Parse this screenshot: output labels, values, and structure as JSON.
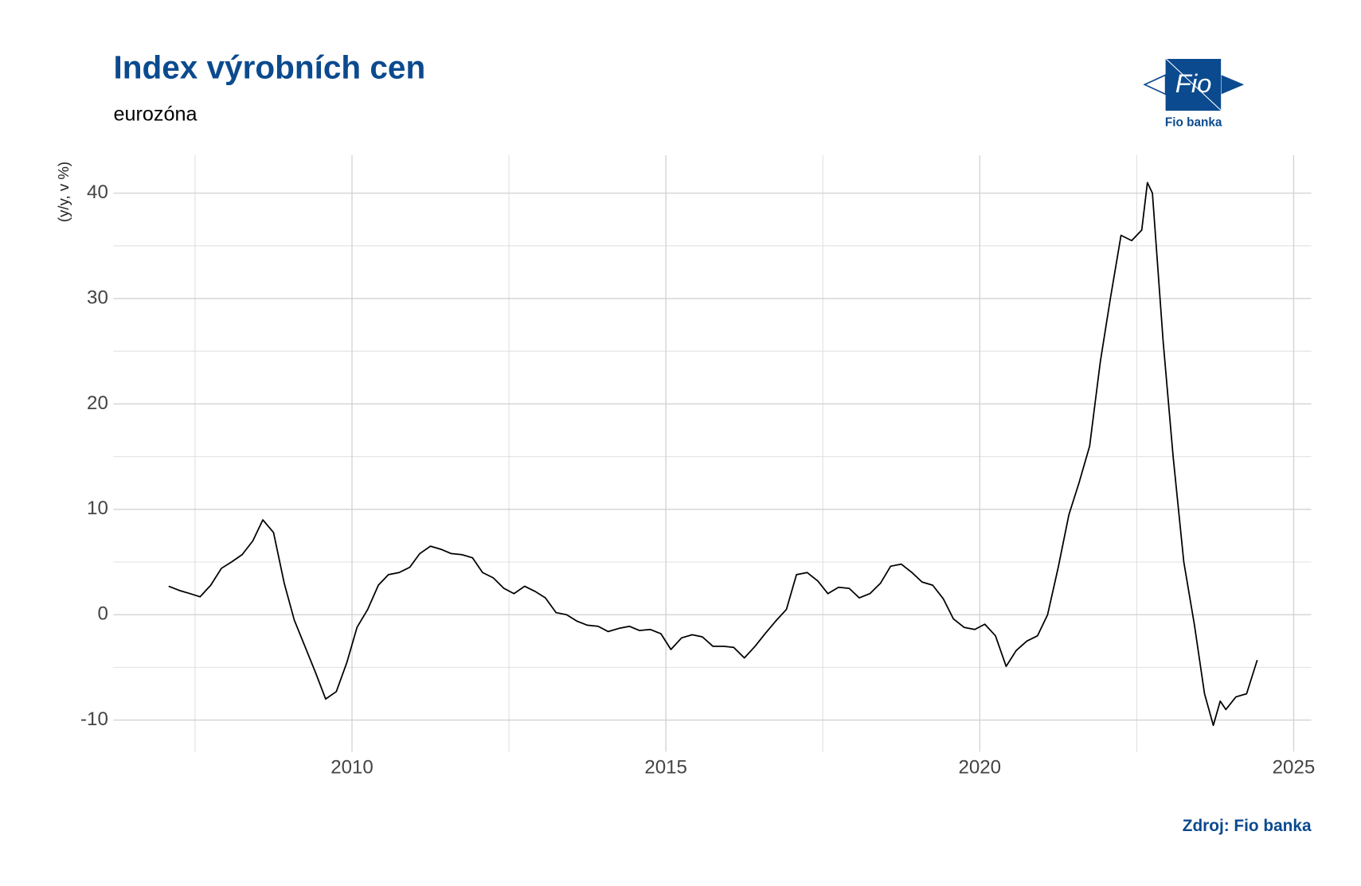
{
  "chart_data": {
    "type": "line",
    "title": "Index výrobních cen",
    "subtitle": "eurozóna",
    "y_label": "(y/y, v %)",
    "source": "Zdroj: Fio banka",
    "color": "#000000",
    "grid": true,
    "x": [
      2007.08,
      2007.25,
      2007.42,
      2007.58,
      2007.75,
      2007.92,
      2008.08,
      2008.25,
      2008.42,
      2008.58,
      2008.75,
      2008.92,
      2009.08,
      2009.25,
      2009.42,
      2009.58,
      2009.75,
      2009.92,
      2010.08,
      2010.25,
      2010.42,
      2010.58,
      2010.75,
      2010.92,
      2011.08,
      2011.25,
      2011.42,
      2011.58,
      2011.75,
      2011.92,
      2012.08,
      2012.25,
      2012.42,
      2012.58,
      2012.75,
      2012.92,
      2013.08,
      2013.25,
      2013.42,
      2013.58,
      2013.75,
      2013.92,
      2014.08,
      2014.25,
      2014.42,
      2014.58,
      2014.75,
      2014.92,
      2015.08,
      2015.25,
      2015.42,
      2015.58,
      2015.75,
      2015.92,
      2016.08,
      2016.25,
      2016.42,
      2016.58,
      2016.75,
      2016.92,
      2017.08,
      2017.25,
      2017.42,
      2017.58,
      2017.75,
      2017.92,
      2018.08,
      2018.25,
      2018.42,
      2018.58,
      2018.75,
      2018.92,
      2019.08,
      2019.25,
      2019.42,
      2019.58,
      2019.75,
      2019.92,
      2020.08,
      2020.25,
      2020.42,
      2020.58,
      2020.75,
      2020.92,
      2021.08,
      2021.25,
      2021.42,
      2021.58,
      2021.75,
      2021.92,
      2022.08,
      2022.25,
      2022.42,
      2022.58,
      2022.67,
      2022.75,
      2022.92,
      2023.08,
      2023.25,
      2023.42,
      2023.58,
      2023.72,
      2023.83,
      2023.92,
      2024.08,
      2024.25,
      2024.42
    ],
    "values": [
      2.7,
      2.3,
      2.0,
      1.7,
      2.8,
      4.4,
      5.0,
      5.7,
      7.0,
      9.0,
      7.8,
      3.0,
      -0.5,
      -3.0,
      -5.5,
      -8.0,
      -7.3,
      -4.5,
      -1.2,
      0.5,
      2.8,
      3.8,
      4.0,
      4.5,
      5.8,
      6.5,
      6.2,
      5.8,
      5.7,
      5.4,
      4.0,
      3.5,
      2.5,
      2.0,
      2.7,
      2.2,
      1.6,
      0.2,
      0.0,
      -0.6,
      -1.0,
      -1.1,
      -1.6,
      -1.3,
      -1.1,
      -1.5,
      -1.4,
      -1.8,
      -3.3,
      -2.2,
      -1.9,
      -2.1,
      -3.0,
      -3.0,
      -3.1,
      -4.1,
      -3.0,
      -1.8,
      -0.6,
      0.5,
      3.8,
      4.0,
      3.2,
      2.0,
      2.6,
      2.5,
      1.6,
      2.0,
      3.0,
      4.6,
      4.8,
      4.0,
      3.1,
      2.8,
      1.5,
      -0.4,
      -1.2,
      -1.4,
      -0.9,
      -2.0,
      -4.9,
      -3.4,
      -2.5,
      -2.0,
      0.0,
      4.5,
      9.5,
      12.5,
      16.0,
      24.0,
      30.0,
      36.0,
      35.5,
      36.5,
      41.0,
      40.0,
      26.0,
      15.0,
      5.0,
      -1.0,
      -7.5,
      -10.5,
      -8.2,
      -9.0,
      -7.8,
      -7.5,
      -4.3
    ],
    "xlim": [
      2006.2,
      2025.28
    ],
    "xticks": [
      2010,
      2015,
      2020,
      2025
    ],
    "xminor": [
      2007.5,
      2012.5,
      2017.5,
      2022.5
    ],
    "ylim": [
      -13.0,
      43.6
    ],
    "yticks": [
      -10,
      0,
      10,
      20,
      30,
      40
    ],
    "yminor": [
      -5,
      5,
      15,
      25,
      35
    ]
  },
  "logo": {
    "text": "Fio",
    "caption": "Fio banka"
  }
}
